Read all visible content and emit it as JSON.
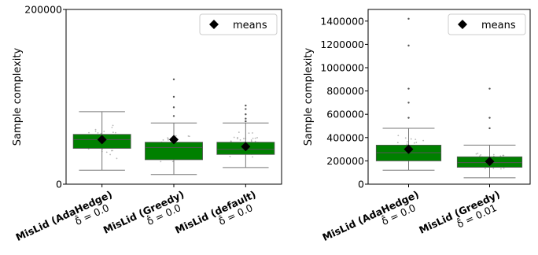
{
  "chart_data": [
    {
      "type": "box",
      "ylabel": "Sample complexity",
      "ylim": [
        0,
        200000
      ],
      "yticks": [
        0,
        200000
      ],
      "legend": {
        "label": "means",
        "placement": "top-right"
      },
      "box_color": "#008000",
      "categories": [
        {
          "name": "MisLid (AdaHedge)",
          "param": "δ̂ = 0.0",
          "q1": 41000,
          "median": 51000,
          "q3": 57000,
          "whisker_low": 16000,
          "whisker_high": 83000,
          "mean": 51000,
          "outliers": []
        },
        {
          "name": "MisLid (Greedy)",
          "param": "δ̂ = 0.0",
          "q1": 28000,
          "median": 42000,
          "q3": 48000,
          "whisker_low": 11000,
          "whisker_high": 70000,
          "mean": 51000,
          "outliers": [
            78000,
            88000,
            100000,
            120000
          ]
        },
        {
          "name": "MisLid (default)",
          "param": "δ̂ = 0.0",
          "q1": 34000,
          "median": 40000,
          "q3": 48000,
          "whisker_low": 19000,
          "whisker_high": 70000,
          "mean": 43000,
          "outliers": [
            72000,
            75000,
            80000,
            86000,
            90000
          ]
        }
      ]
    },
    {
      "type": "box",
      "ylabel": "Sample complexity",
      "ylim": [
        0,
        1500000
      ],
      "yticks": [
        0,
        200000,
        400000,
        600000,
        800000,
        1000000,
        1200000,
        1400000
      ],
      "legend": {
        "label": "means",
        "placement": "top-right"
      },
      "box_color": "#008000",
      "categories": [
        {
          "name": "MisLid (AdaHedge)",
          "param": "δ̂ = 0.0",
          "q1": 200000,
          "median": 270000,
          "q3": 335000,
          "whisker_low": 120000,
          "whisker_high": 480000,
          "mean": 300000,
          "outliers": [
            570000,
            700000,
            820000,
            1190000,
            1420000
          ]
        },
        {
          "name": "MisLid (Greedy)",
          "param": "δ̂ = 0.01",
          "q1": 145000,
          "median": 185000,
          "q3": 235000,
          "whisker_low": 55000,
          "whisker_high": 335000,
          "mean": 195000,
          "outliers": [
            480000,
            570000,
            820000
          ]
        }
      ]
    }
  ]
}
